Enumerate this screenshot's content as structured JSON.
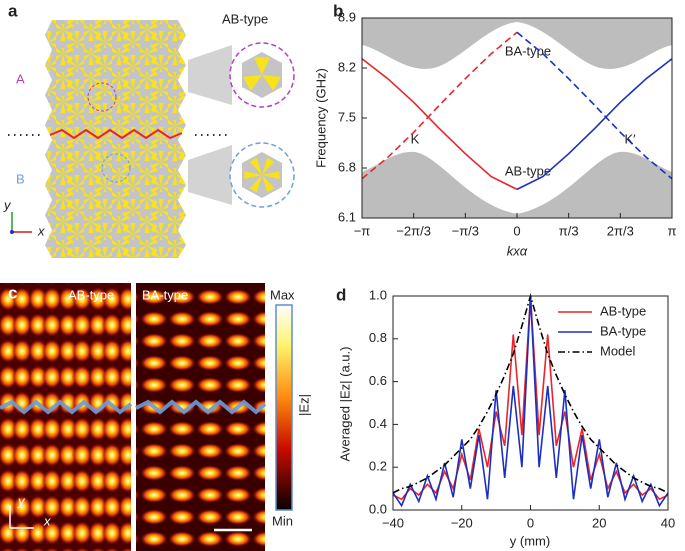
{
  "panel_a": {
    "label": "a",
    "type_label": "AB-type",
    "region_a": "A",
    "region_b": "B",
    "axis_y": "y",
    "axis_x": "x"
  },
  "panel_c": {
    "label": "c",
    "left_title": "AB-type",
    "right_title": "BA-type",
    "colorbar_max": "Max",
    "colorbar_min": "Min",
    "colorbar_label": "|Ez|",
    "axis_y": "y",
    "axis_x": "x"
  },
  "chart_data": [
    {
      "type": "line",
      "label": "b",
      "ylabel": "Frequency (GHz)",
      "xlabel": "kxα",
      "annotations": [
        "BA-type",
        "K",
        "K′",
        "AB-type"
      ],
      "x": [
        -3.1416,
        -2.618,
        -2.0944,
        -1.5708,
        -1.0472,
        -0.5236,
        0,
        0.5236,
        1.0472,
        1.5708,
        2.0944,
        2.618,
        3.1416
      ],
      "xlim": [
        -3.1416,
        3.1416
      ],
      "xticks": [
        {
          "value": -3.1416,
          "label": "−π"
        },
        {
          "value": -2.0944,
          "label": "−2π/3"
        },
        {
          "value": -1.0472,
          "label": "−π/3"
        },
        0,
        {
          "value": 1.0472,
          "label": "π/3"
        },
        {
          "value": 2.0944,
          "label": "2π/3"
        },
        {
          "value": 3.1416,
          "label": "π"
        }
      ],
      "ylim": [
        6.1,
        8.9
      ],
      "yticks": [
        6.1,
        6.8,
        7.5,
        8.2,
        8.9
      ],
      "series": [
        {
          "color": "#e8262a",
          "dash": "solid",
          "values": [
            8.33,
            8.05,
            7.72,
            7.35,
            7.0,
            6.68,
            6.5,
            null,
            null,
            null,
            null,
            null,
            null
          ]
        },
        {
          "color": "#e8262a",
          "dash": "dashed",
          "values": [
            6.65,
            6.95,
            7.3,
            7.68,
            8.05,
            8.4,
            8.7,
            null,
            null,
            null,
            null,
            null,
            null
          ]
        },
        {
          "color": "#1c2fc0",
          "dash": "solid",
          "values": [
            null,
            null,
            null,
            null,
            null,
            null,
            6.5,
            6.68,
            7.0,
            7.35,
            7.72,
            8.05,
            8.33
          ]
        },
        {
          "color": "#1c2fc0",
          "dash": "dashed",
          "values": [
            null,
            null,
            null,
            null,
            null,
            null,
            8.7,
            8.4,
            8.05,
            7.68,
            7.3,
            6.95,
            6.65
          ]
        }
      ]
    },
    {
      "type": "line",
      "label": "d",
      "ylabel": "Averaged |Ez| (a.u.)",
      "xlabel": "y (mm)",
      "legend": "upper right",
      "x": [
        -40,
        -37.5,
        -35,
        -32.5,
        -30,
        -27.5,
        -25,
        -22.5,
        -20,
        -17.5,
        -15,
        -12.5,
        -10,
        -7.5,
        -5,
        -2.5,
        0,
        2.5,
        5,
        7.5,
        10,
        12.5,
        15,
        17.5,
        20,
        22.5,
        25,
        27.5,
        30,
        32.5,
        35,
        37.5,
        40
      ],
      "xlim": [
        -40,
        40
      ],
      "xticks": [
        {
          "value": -40,
          "label": "−40"
        },
        {
          "value": -20,
          "label": "−20"
        },
        0,
        20,
        40
      ],
      "ylim": [
        0,
        1
      ],
      "yticks": [
        {
          "value": 0,
          "label": "0.0"
        },
        0.2,
        0.4,
        0.6,
        0.8,
        {
          "value": 1,
          "label": "1.0"
        }
      ],
      "series": [
        {
          "name": "AB-type",
          "color": "#e8262a",
          "dash": "solid",
          "values": [
            0.07,
            0.05,
            0.1,
            0.07,
            0.12,
            0.08,
            0.18,
            0.1,
            0.26,
            0.14,
            0.38,
            0.2,
            0.46,
            0.3,
            0.82,
            0.35,
            1.0,
            0.35,
            0.82,
            0.3,
            0.46,
            0.2,
            0.38,
            0.14,
            0.26,
            0.1,
            0.18,
            0.08,
            0.12,
            0.07,
            0.1,
            0.05,
            0.07
          ]
        },
        {
          "name": "BA-type",
          "color": "#1c2fc0",
          "dash": "solid",
          "values": [
            0.08,
            0.02,
            0.12,
            0.04,
            0.16,
            0.05,
            0.22,
            0.06,
            0.33,
            0.1,
            0.35,
            0.05,
            0.56,
            0.15,
            0.58,
            0.2,
            1.0,
            0.2,
            0.58,
            0.15,
            0.56,
            0.05,
            0.35,
            0.1,
            0.33,
            0.06,
            0.22,
            0.05,
            0.16,
            0.04,
            0.12,
            0.02,
            0.08
          ]
        },
        {
          "name": "Model",
          "color": "#000000",
          "dash": "dashdot",
          "values": [
            0.08,
            0.1,
            0.11,
            0.13,
            0.15,
            0.18,
            0.21,
            0.25,
            0.29,
            0.33,
            0.39,
            0.46,
            0.54,
            0.63,
            0.73,
            0.86,
            1.0,
            0.86,
            0.73,
            0.63,
            0.54,
            0.46,
            0.39,
            0.33,
            0.29,
            0.25,
            0.21,
            0.18,
            0.15,
            0.13,
            0.11,
            0.1,
            0.08
          ]
        }
      ]
    }
  ]
}
